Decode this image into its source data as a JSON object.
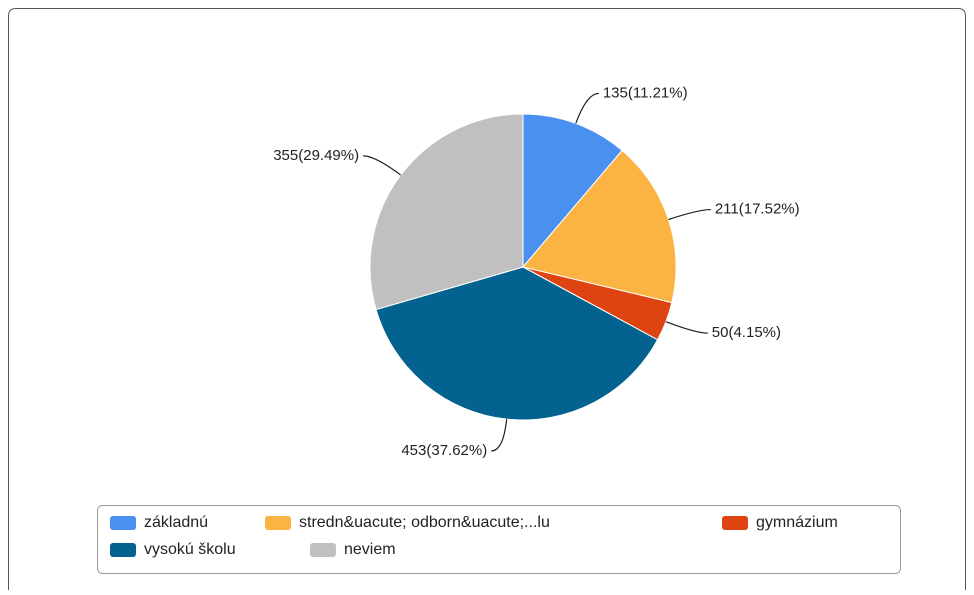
{
  "chart_data": {
    "type": "pie",
    "categories": [
      "základnú",
      "stredn&uacute; odborn&uacute;...lu",
      "gymnázium",
      "vysokú školu",
      "neviem"
    ],
    "values": [
      135,
      211,
      50,
      453,
      355
    ],
    "value_labels": [
      "135(11.21%)",
      "211(17.52%)",
      "50(4.15%)",
      "453(37.62%)",
      "355(29.49%)"
    ],
    "colors": [
      "#4a90f0",
      "#fbb444",
      "#dd4411",
      "#03628f",
      "#c0c0c0"
    ]
  }
}
